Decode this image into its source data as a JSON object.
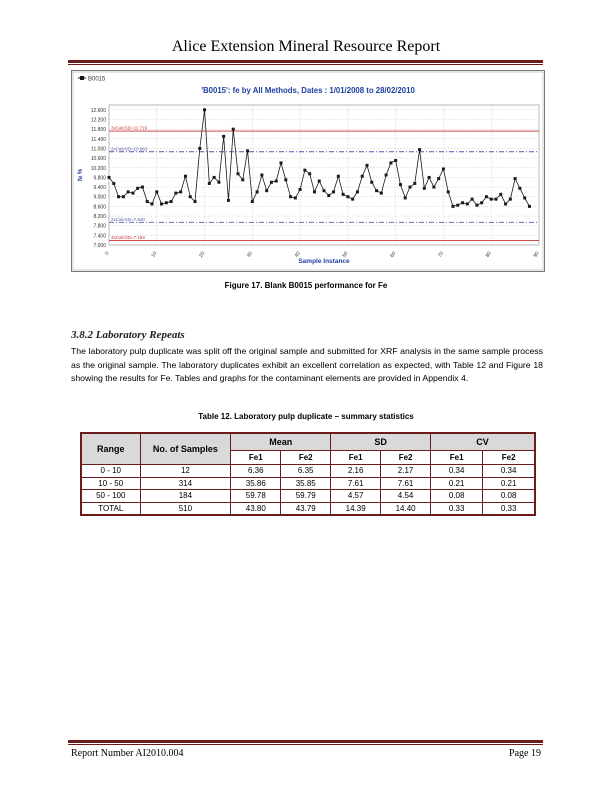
{
  "header": {
    "title": "Alice Extension Mineral Resource Report"
  },
  "figure": {
    "caption": "Figure 17. Blank B0015 performance for Fe"
  },
  "chart_data": {
    "type": "line",
    "title": "'B0015': fe by All Methods, Dates : 1/01/2008 to 28/02/2010",
    "legend": "B0015",
    "xlabel": "Sample Instance",
    "ylabel": "fe %",
    "ylim": [
      7.0,
      12.8
    ],
    "xlim": [
      0,
      90
    ],
    "yticks": [
      "12.600",
      "12.200",
      "11.800",
      "11.400",
      "11.000",
      "10.600",
      "10.200",
      "9.800",
      "9.400",
      "9.000",
      "8.600",
      "8.200",
      "7.800",
      "7.400",
      "7.000"
    ],
    "yticks_values": [
      12.6,
      12.2,
      11.8,
      11.4,
      11.0,
      10.6,
      10.2,
      9.8,
      9.4,
      9.0,
      8.6,
      8.2,
      7.8,
      7.4,
      7.0
    ],
    "xticks": [
      "0",
      "10",
      "20",
      "30",
      "40",
      "50",
      "60",
      "70",
      "80",
      "90"
    ],
    "xticks_values": [
      0,
      10,
      20,
      30,
      40,
      50,
      60,
      70,
      80,
      90
    ],
    "reference_lines": [
      {
        "label": "3xCalcSD=11.719",
        "value": 11.719,
        "style": "solid",
        "color": "#cc3333"
      },
      {
        "label": "2xCalcSD=10.863",
        "value": 10.863,
        "style": "dashdot",
        "color": "#5555aa"
      },
      {
        "label": "2xCalcSD=7.940",
        "value": 7.94,
        "style": "dashdot",
        "color": "#5555aa"
      },
      {
        "label": "3xCalcSD=7.184",
        "value": 7.184,
        "style": "solid",
        "color": "#cc3333"
      }
    ],
    "series": [
      {
        "name": "B0015",
        "color": "#1a1a1a",
        "values": [
          9.8,
          9.55,
          9.0,
          9.0,
          9.2,
          9.15,
          9.35,
          9.4,
          8.8,
          8.7,
          9.2,
          8.7,
          8.75,
          8.8,
          9.15,
          9.2,
          9.85,
          9.0,
          8.8,
          11.0,
          12.6,
          9.55,
          9.8,
          9.6,
          11.5,
          8.85,
          11.8,
          9.95,
          9.7,
          10.9,
          8.8,
          9.2,
          9.9,
          9.25,
          9.6,
          9.65,
          10.4,
          9.7,
          9.0,
          8.95,
          9.3,
          10.1,
          9.95,
          9.2,
          9.65,
          9.25,
          9.05,
          9.2,
          9.85,
          9.1,
          9.0,
          8.9,
          9.2,
          9.85,
          10.3,
          9.6,
          9.25,
          9.15,
          9.9,
          10.4,
          10.5,
          9.5,
          8.95,
          9.4,
          9.55,
          10.95,
          9.35,
          9.8,
          9.4,
          9.75,
          10.15,
          9.2,
          8.6,
          8.65,
          8.75,
          8.7,
          8.9,
          8.65,
          8.75,
          9.0,
          8.9,
          8.9,
          9.1,
          8.7,
          8.9,
          9.75,
          9.35,
          8.95,
          8.6
        ]
      }
    ]
  },
  "section": {
    "heading": "3.8.2 Laboratory Repeats",
    "paragraph": "The laboratory pulp duplicate was split off the original sample and submitted for XRF analysis in the same sample process as the original sample.  The laboratory duplicates exhibit an excellent correlation as expected, with Table 12 and Figure 18 showing the results for Fe.  Tables and graphs for the contaminant elements are provided in Appendix 4."
  },
  "table": {
    "caption": "Table 12. Laboratory pulp duplicate – summary statistics",
    "headers": {
      "range": "Range",
      "samples": "No. of Samples",
      "mean": "Mean",
      "sd": "SD",
      "cv": "CV"
    },
    "subheaders": [
      "Fe1",
      "Fe2",
      "Fe1",
      "Fe2",
      "Fe1",
      "Fe2"
    ],
    "rows": [
      [
        "0 - 10",
        "12",
        "6.36",
        "6.35",
        "2.16",
        "2.17",
        "0.34",
        "0.34"
      ],
      [
        "10 - 50",
        "314",
        "35.86",
        "35.85",
        "7.61",
        "7.61",
        "0.21",
        "0.21"
      ],
      [
        "50 - 100",
        "184",
        "59.78",
        "59.79",
        "4.57",
        "4.54",
        "0.08",
        "0.08"
      ],
      [
        "TOTAL",
        "510",
        "43.80",
        "43.79",
        "14.39",
        "14.40",
        "0.33",
        "0.33"
      ]
    ]
  },
  "footer": {
    "left": "Report Number AI2010.004",
    "right": "Page 19"
  }
}
